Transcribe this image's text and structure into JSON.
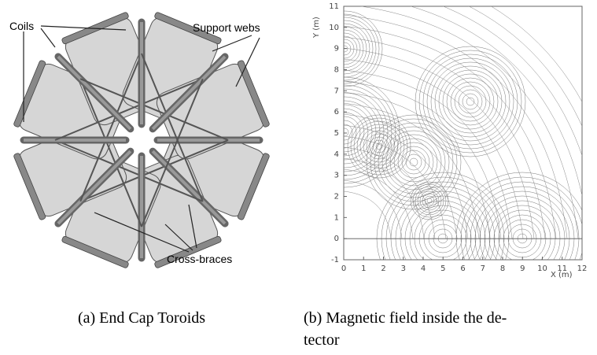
{
  "figure": {
    "subfigures": [
      {
        "labels": [
          "Coils",
          "Support webs",
          "Cross-braces"
        ],
        "caption": "(a) End Cap Toroids"
      },
      {
        "x_label": "X (m)",
        "y_label": "Y (m)",
        "xticks": [
          0,
          1,
          2,
          3,
          4,
          5,
          6,
          7,
          8,
          9,
          10,
          11,
          12
        ],
        "yticks": [
          -1,
          0,
          1,
          2,
          3,
          4,
          5,
          6,
          7,
          8,
          9,
          10,
          11
        ],
        "caption_lines": [
          "(b) Magnetic field inside the de-",
          "tector"
        ]
      }
    ]
  }
}
